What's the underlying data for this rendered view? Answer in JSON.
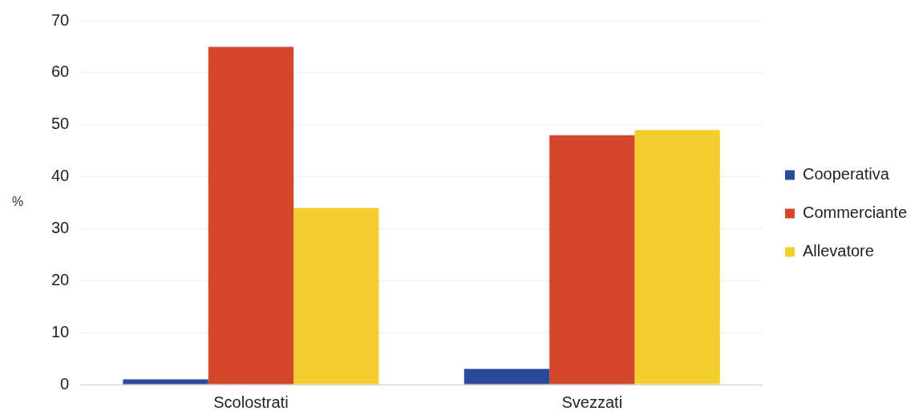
{
  "chart_data": {
    "type": "bar",
    "ylabel": "%",
    "categories": [
      "Scolostrati",
      "Svezzati"
    ],
    "series": [
      {
        "name": "Cooperativa",
        "color": "#2b4a9a",
        "values": [
          1,
          3
        ]
      },
      {
        "name": "Commerciante",
        "color": "#d4472a",
        "values": [
          65,
          48
        ]
      },
      {
        "name": "Allevatore",
        "color": "#f2cf2e",
        "values": [
          34,
          49
        ]
      }
    ],
    "ylim": [
      0,
      70
    ],
    "yticks": [
      0,
      10,
      20,
      30,
      40,
      50,
      60,
      70
    ],
    "grid": "y",
    "legend": "right"
  }
}
